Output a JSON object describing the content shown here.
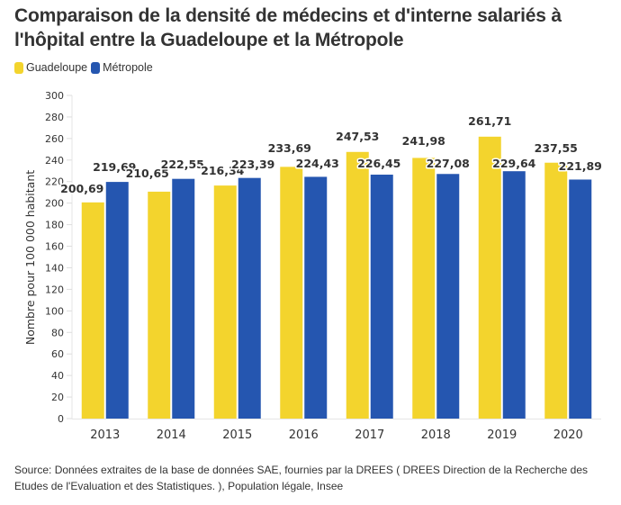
{
  "title": "Comparaison de la densité de médecins et d'interne salariés à l'hôpital entre la Guadeloupe et la Métropole",
  "legend": [
    {
      "label": "Guadeloupe",
      "color": "#f3d42d"
    },
    {
      "label": "Métropole",
      "color": "#2556b0"
    }
  ],
  "source": "Source: Données extraites de la base de données SAE, fournies par la DREES ( DREES Direction de la Recherche des Etudes de l'Evaluation et des Statistiques. ), Population légale, Insee",
  "chart_data": {
    "type": "bar",
    "title": "Comparaison de la densité de médecins et d'interne salariés à l'hôpital entre la Guadeloupe et la Métropole",
    "xlabel": "",
    "ylabel": "Nombre pour 100 000 habitant",
    "ylim": [
      0,
      300
    ],
    "yticks": [
      0,
      20,
      40,
      60,
      80,
      100,
      120,
      140,
      160,
      180,
      200,
      220,
      240,
      260,
      280,
      300
    ],
    "grid": false,
    "legend_position": "top-left",
    "categories": [
      "2013",
      "2014",
      "2015",
      "2016",
      "2017",
      "2018",
      "2019",
      "2020"
    ],
    "series": [
      {
        "name": "Guadeloupe",
        "color": "#f3d42d",
        "values": [
          200.69,
          210.65,
          216.34,
          233.69,
          247.53,
          241.98,
          261.71,
          237.55
        ],
        "labels": [
          "200,69",
          "210,65",
          "216,34",
          "233,69",
          "247,53",
          "241,98",
          "261,71",
          "237,55"
        ]
      },
      {
        "name": "Métropole",
        "color": "#2556b0",
        "values": [
          219.69,
          222.55,
          223.39,
          224.43,
          226.45,
          227.08,
          229.64,
          221.89
        ],
        "labels": [
          "219,69",
          "222,55",
          "223,39",
          "224,43",
          "226,45",
          "227,08",
          "229,64",
          "221,89"
        ]
      }
    ]
  }
}
